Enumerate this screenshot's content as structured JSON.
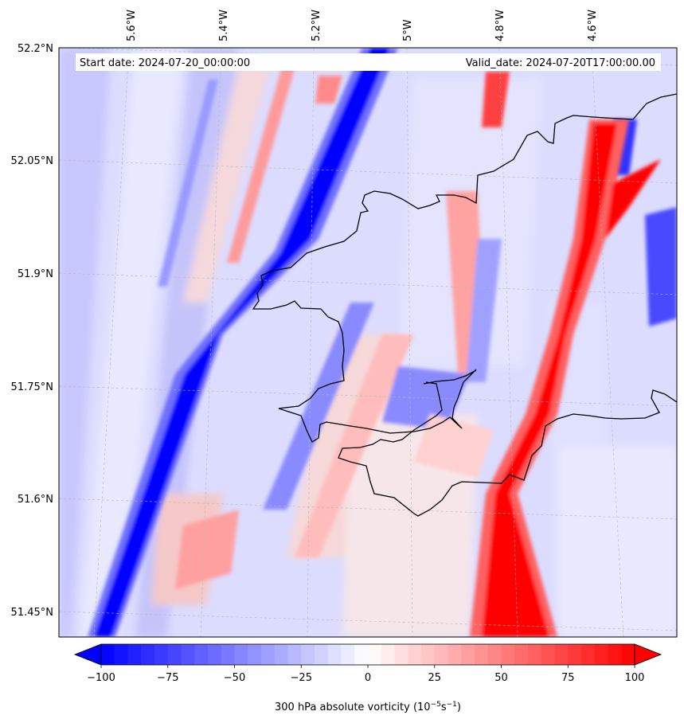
{
  "map": {
    "start_date": "Start date: 2024-07-20_00:00:00",
    "valid_date": "Valid_date: 2024-07-20T17:00:00.00",
    "lon_labels": [
      "5.6°W",
      "5.4°W",
      "5.2°W",
      "5°W",
      "4.8°W",
      "4.6°W"
    ],
    "lat_labels": [
      "52.2°N",
      "52.05°N",
      "51.9°N",
      "51.75°N",
      "51.6°N",
      "51.45°N"
    ],
    "field": "300 hPa absolute vorticity",
    "gridlines": true
  },
  "colorbar": {
    "label": "300 hPa absolute vorticity (10",
    "label_exp1": "−5",
    "label_mid": "s",
    "label_exp2": "−1",
    "label_end": ")",
    "ticks": [
      "−100",
      "−75",
      "−50",
      "−25",
      "0",
      "25",
      "50",
      "75",
      "100"
    ],
    "range": [
      -100,
      100
    ],
    "cmap": "bwr",
    "extend": "both",
    "low_color": "#0000ff",
    "mid_color": "#ffffff",
    "high_color": "#ff0000"
  }
}
